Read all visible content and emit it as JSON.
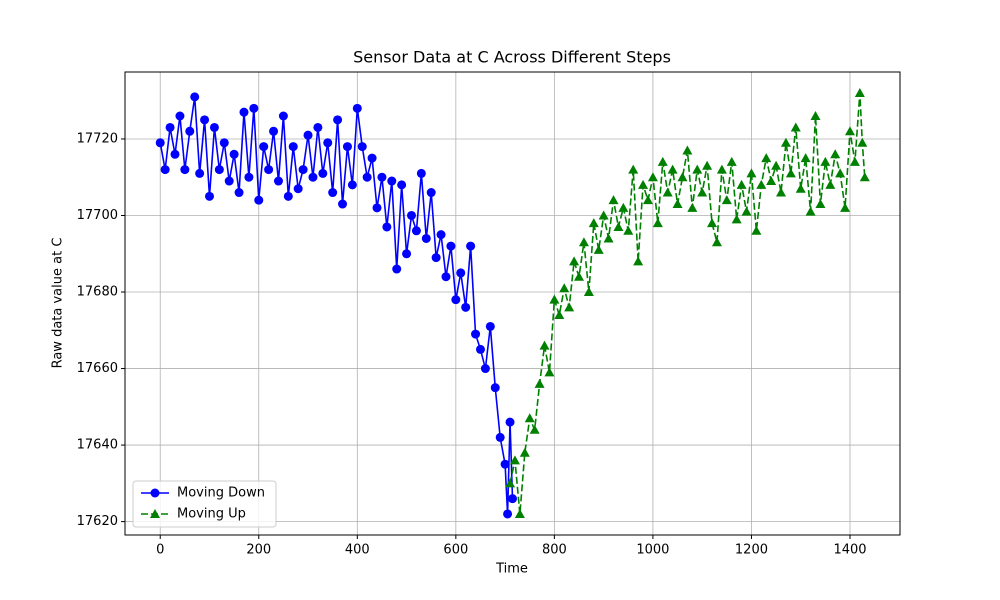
{
  "chart_data": {
    "type": "line",
    "title": "Sensor Data at C Across Different Steps",
    "xlabel": "Time",
    "ylabel": "Raw data value at C",
    "xlim": [
      -71.5,
      1501.5
    ],
    "ylim": [
      17616.5,
      17737.5
    ],
    "xticks": [
      0,
      200,
      400,
      600,
      800,
      1000,
      1200,
      1400
    ],
    "yticks": [
      17620,
      17640,
      17660,
      17680,
      17700,
      17720
    ],
    "grid": true,
    "legend": "lower left",
    "series": [
      {
        "name": "Moving Down",
        "color": "#0000ff",
        "marker": "circle",
        "linestyle": "solid",
        "x": [
          0,
          10,
          20,
          30,
          40,
          50,
          60,
          70,
          80,
          90,
          100,
          110,
          120,
          130,
          140,
          150,
          160,
          170,
          180,
          190,
          200,
          210,
          220,
          230,
          240,
          250,
          260,
          270,
          280,
          290,
          300,
          310,
          320,
          330,
          340,
          350,
          360,
          370,
          380,
          390,
          400,
          410,
          420,
          430,
          440,
          450,
          460,
          470,
          480,
          490,
          500,
          510,
          520,
          530,
          540,
          550,
          560,
          570,
          580,
          590,
          600,
          610,
          620,
          630,
          640,
          650,
          660,
          670,
          680,
          690,
          700,
          705,
          710,
          715
        ],
        "values": [
          17719,
          17712,
          17723,
          17716,
          17726,
          17712,
          17722,
          17731,
          17711,
          17725,
          17705,
          17723,
          17712,
          17719,
          17709,
          17716,
          17706,
          17727,
          17710,
          17728,
          17704,
          17718,
          17712,
          17722,
          17709,
          17726,
          17705,
          17718,
          17707,
          17712,
          17721,
          17710,
          17723,
          17711,
          17719,
          17706,
          17725,
          17703,
          17718,
          17708,
          17728,
          17718,
          17710,
          17715,
          17702,
          17710,
          17697,
          17709,
          17686,
          17708,
          17690,
          17700,
          17696,
          17711,
          17694,
          17706,
          17689,
          17695,
          17684,
          17692,
          17678,
          17685,
          17676,
          17692,
          17669,
          17665,
          17660,
          17671,
          17655,
          17642,
          17635,
          17622,
          17646,
          17626
        ]
      },
      {
        "name": "Moving Up",
        "color": "#008000",
        "marker": "triangle",
        "linestyle": "dashed",
        "x": [
          710,
          720,
          730,
          740,
          750,
          760,
          770,
          780,
          790,
          800,
          810,
          820,
          830,
          840,
          850,
          860,
          870,
          880,
          890,
          900,
          910,
          920,
          930,
          940,
          950,
          960,
          970,
          980,
          990,
          1000,
          1010,
          1020,
          1030,
          1040,
          1050,
          1060,
          1070,
          1080,
          1090,
          1100,
          1110,
          1120,
          1130,
          1140,
          1150,
          1160,
          1170,
          1180,
          1190,
          1200,
          1210,
          1220,
          1230,
          1240,
          1250,
          1260,
          1270,
          1280,
          1290,
          1300,
          1310,
          1320,
          1330,
          1340,
          1350,
          1360,
          1370,
          1380,
          1390,
          1400,
          1410,
          1420,
          1425,
          1430
        ],
        "values": [
          17630,
          17636,
          17622,
          17638,
          17647,
          17644,
          17656,
          17666,
          17659,
          17678,
          17674,
          17681,
          17676,
          17688,
          17684,
          17693,
          17680,
          17698,
          17691,
          17700,
          17694,
          17704,
          17697,
          17702,
          17696,
          17712,
          17688,
          17708,
          17704,
          17710,
          17698,
          17714,
          17706,
          17712,
          17703,
          17710,
          17717,
          17702,
          17712,
          17706,
          17713,
          17698,
          17693,
          17712,
          17704,
          17714,
          17699,
          17708,
          17701,
          17711,
          17696,
          17708,
          17715,
          17709,
          17713,
          17706,
          17719,
          17711,
          17723,
          17707,
          17715,
          17701,
          17726,
          17703,
          17714,
          17708,
          17716,
          17711,
          17702,
          17722,
          17714,
          17732,
          17719,
          17710
        ]
      }
    ]
  }
}
